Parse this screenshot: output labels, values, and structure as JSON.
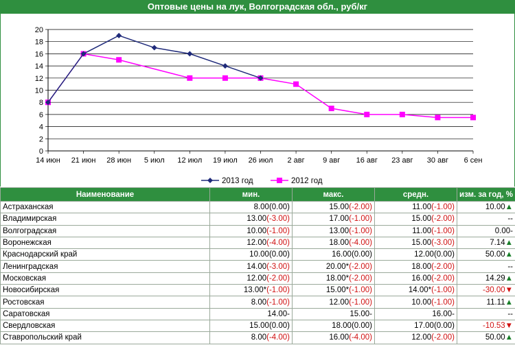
{
  "title": "Оптовые цены на лук, Волгоградская обл., руб/кг",
  "chart_data": {
    "type": "line",
    "categories": [
      "14 июн",
      "21 июн",
      "28 июн",
      "5 июл",
      "12 июл",
      "19 июл",
      "26 июл",
      "2 авг",
      "9 авг",
      "16 авг",
      "23 авг",
      "30 авг",
      "6 сен"
    ],
    "ylim": [
      0,
      20
    ],
    "yticks": [
      0,
      2,
      4,
      6,
      8,
      10,
      12,
      14,
      16,
      18,
      20
    ],
    "grid": true,
    "legend_position": "bottom",
    "series": [
      {
        "name": "2013 год",
        "color": "#1f2a7a",
        "marker": "diamond",
        "values": [
          8,
          16,
          19,
          17,
          16,
          14,
          12,
          null,
          null,
          null,
          null,
          null,
          null
        ]
      },
      {
        "name": "2012 год",
        "color": "#ff00ff",
        "marker": "square",
        "values": [
          8,
          16,
          15,
          null,
          12,
          12,
          12,
          11,
          7,
          6,
          6,
          5.5,
          5.5
        ]
      }
    ]
  },
  "table": {
    "headers": [
      "Наименование",
      "мин.",
      "макс.",
      "средн.",
      "изм. за год, %"
    ],
    "rows": [
      {
        "name": "Астраханская",
        "min": "8.00",
        "min_ch": "(0.00)",
        "max": "15.00",
        "max_ch": "(-2.00)",
        "avg": "11.00",
        "avg_ch": "(-1.00)",
        "chg": "10.00",
        "dir": "up"
      },
      {
        "name": "Владимирская",
        "min": "13.00",
        "min_ch": "(-3.00)",
        "max": "17.00",
        "max_ch": "(-1.00)",
        "avg": "15.00",
        "avg_ch": "(-2.00)",
        "chg": "--",
        "dir": ""
      },
      {
        "name": "Волгоградская",
        "min": "10.00",
        "min_ch": "(-1.00)",
        "max": "13.00",
        "max_ch": "(-1.00)",
        "avg": "11.00",
        "avg_ch": "(-1.00)",
        "chg": "0.00-",
        "dir": ""
      },
      {
        "name": "Воронежская",
        "min": "12.00",
        "min_ch": "(-4.00)",
        "max": "18.00",
        "max_ch": "(-4.00)",
        "avg": "15.00",
        "avg_ch": "(-3.00)",
        "chg": "7.14",
        "dir": "up"
      },
      {
        "name": "Краснодарский край",
        "min": "10.00",
        "min_ch": "(0.00)",
        "max": "16.00",
        "max_ch": "(0.00)",
        "avg": "12.00",
        "avg_ch": "(0.00)",
        "chg": "50.00",
        "dir": "up"
      },
      {
        "name": "Ленинградская",
        "min": "14.00",
        "min_ch": "(-3.00)",
        "max": "20.00*",
        "max_ch": "(-2.00)",
        "avg": "18.00",
        "avg_ch": "(-2.00)",
        "chg": "--",
        "dir": ""
      },
      {
        "name": "Московская",
        "min": "12.00",
        "min_ch": "(-2.00)",
        "max": "18.00*",
        "max_ch": "(-2.00)",
        "avg": "16.00",
        "avg_ch": "(-2.00)",
        "chg": "14.29",
        "dir": "up"
      },
      {
        "name": "Новосибирская",
        "min": "13.00*",
        "min_ch": "(-1.00)",
        "max": "15.00*",
        "max_ch": "(-1.00)",
        "avg": "14.00*",
        "avg_ch": "(-1.00)",
        "chg": "-30.00",
        "dir": "down"
      },
      {
        "name": "Ростовская",
        "min": "8.00",
        "min_ch": "(-1.00)",
        "max": "12.00",
        "max_ch": "(-1.00)",
        "avg": "10.00",
        "avg_ch": "(-1.00)",
        "chg": "11.11",
        "dir": "up"
      },
      {
        "name": "Саратовская",
        "min": "14.00",
        "min_ch": "-",
        "max": "15.00",
        "max_ch": "-",
        "avg": "16.00",
        "avg_ch": "-",
        "chg": "--",
        "dir": ""
      },
      {
        "name": "Свердловская",
        "min": "15.00",
        "min_ch": "(0.00)",
        "max": "18.00",
        "max_ch": "(0.00)",
        "avg": "17.00",
        "avg_ch": "(0.00)",
        "chg": "-10.53",
        "dir": "down"
      },
      {
        "name": "Ставропольский край",
        "min": "8.00",
        "min_ch": "(-4.00)",
        "max": "16.00",
        "max_ch": "(-4.00)",
        "avg": "12.00",
        "avg_ch": "(-2.00)",
        "chg": "50.00",
        "dir": "up"
      }
    ]
  }
}
